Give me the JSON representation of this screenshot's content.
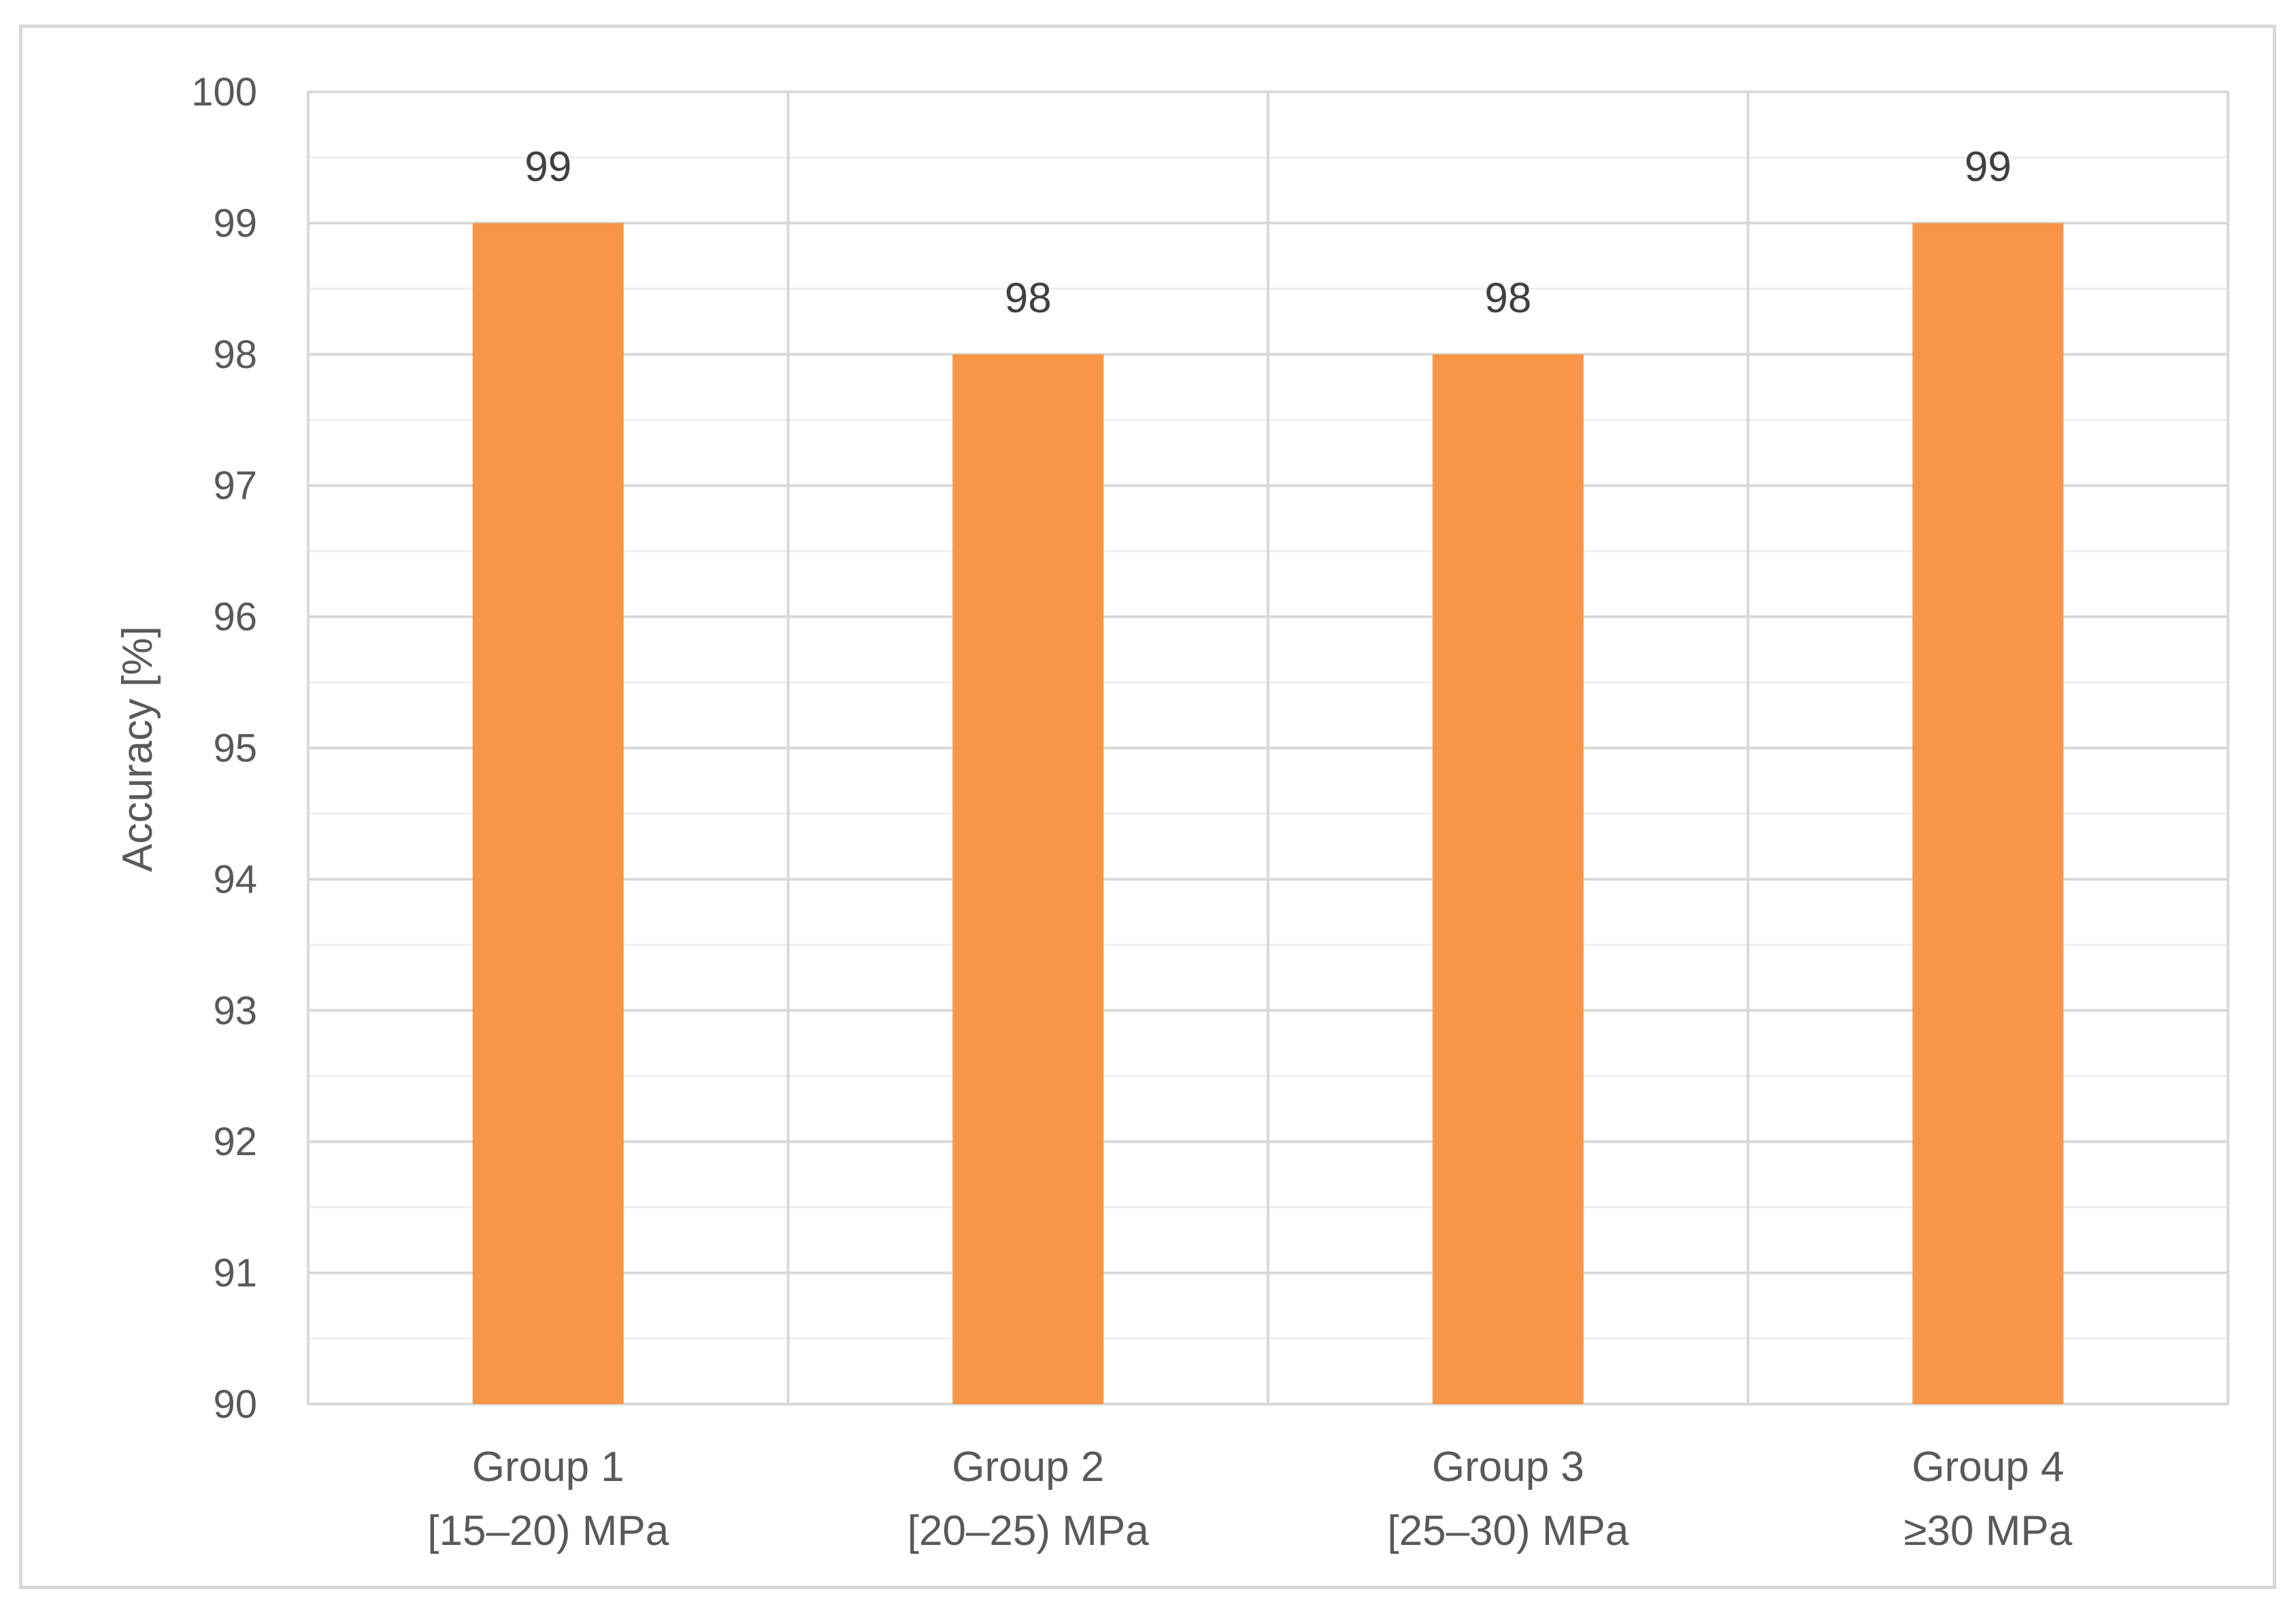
{
  "chart_data": {
    "type": "bar",
    "title": "",
    "xlabel": "",
    "ylabel": "Accuracy [%]",
    "ylim": [
      90,
      100
    ],
    "yticks": [
      90,
      91,
      92,
      93,
      94,
      95,
      96,
      97,
      98,
      99,
      100
    ],
    "minor_ticks_per_major": 2,
    "grid": true,
    "legend": "none",
    "bar_color": "#f79646",
    "categories": [
      {
        "line1": "Group 1",
        "line2": "[15–20) MPa"
      },
      {
        "line1": "Group 2",
        "line2": "[20–25) MPa"
      },
      {
        "line1": "Group 3",
        "line2": "[25–30) MPa"
      },
      {
        "line1": "Group 4",
        "line2": "≥30 MPa"
      }
    ],
    "values": [
      99,
      98,
      98,
      99
    ],
    "data_labels": [
      "99",
      "98",
      "98",
      "99"
    ]
  }
}
